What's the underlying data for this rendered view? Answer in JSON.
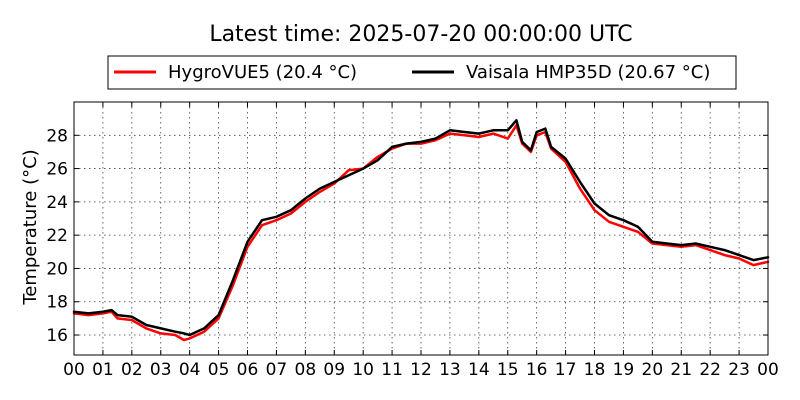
{
  "chart_data": {
    "type": "line",
    "title": "Latest time: 2025-07-20 00:00:00 UTC",
    "ylabel": "Temperature (°C)",
    "xlabel": "",
    "xlim": [
      0,
      24
    ],
    "ylim": [
      14.8,
      30.0
    ],
    "x_ticks": [
      0,
      1,
      2,
      3,
      4,
      5,
      6,
      7,
      8,
      9,
      10,
      11,
      12,
      13,
      14,
      15,
      16,
      17,
      18,
      19,
      20,
      21,
      22,
      23,
      24
    ],
    "x_tick_labels": [
      "00",
      "01",
      "02",
      "03",
      "04",
      "05",
      "06",
      "07",
      "08",
      "09",
      "10",
      "11",
      "12",
      "13",
      "14",
      "15",
      "16",
      "17",
      "18",
      "19",
      "20",
      "21",
      "22",
      "23",
      "00"
    ],
    "y_ticks": [
      16,
      18,
      20,
      22,
      24,
      26,
      28
    ],
    "y_tick_labels": [
      "16",
      "18",
      "20",
      "22",
      "24",
      "26",
      "28"
    ],
    "grid": true,
    "legend_position": "top-center",
    "series": [
      {
        "name": "HygroVUE5 (20.4 °C)",
        "color": "#ff0000",
        "x": [
          0,
          0.5,
          1,
          1.3,
          1.5,
          2,
          2.5,
          3,
          3.5,
          3.8,
          4,
          4.5,
          5,
          5.5,
          6,
          6.5,
          7,
          7.5,
          8,
          8.5,
          9,
          9.5,
          10,
          10.5,
          11,
          11.5,
          12,
          12.5,
          13,
          13.5,
          14,
          14.5,
          15,
          15.3,
          15.5,
          15.8,
          16,
          16.3,
          16.5,
          17,
          17.5,
          18,
          18.5,
          19,
          19.5,
          20,
          20.5,
          21,
          21.5,
          22,
          22.5,
          23,
          23.5,
          24
        ],
        "y": [
          17.3,
          17.2,
          17.3,
          17.4,
          17.0,
          16.9,
          16.4,
          16.1,
          16.0,
          15.7,
          15.8,
          16.2,
          17.0,
          19.0,
          21.3,
          22.6,
          22.9,
          23.3,
          24.0,
          24.6,
          25.1,
          25.9,
          26.0,
          26.7,
          27.2,
          27.5,
          27.5,
          27.7,
          28.1,
          28.0,
          27.9,
          28.1,
          27.8,
          28.6,
          27.5,
          27.0,
          28.0,
          28.2,
          27.2,
          26.4,
          24.8,
          23.5,
          22.8,
          22.5,
          22.2,
          21.5,
          21.4,
          21.3,
          21.4,
          21.1,
          20.8,
          20.6,
          20.2,
          20.4
        ]
      },
      {
        "name": "Vaisala HMP35D (20.67 °C)",
        "color": "#000000",
        "x": [
          0,
          0.5,
          1,
          1.3,
          1.5,
          2,
          2.5,
          3,
          3.5,
          3.8,
          4,
          4.5,
          5,
          5.5,
          6,
          6.5,
          7,
          7.5,
          8,
          8.5,
          9,
          9.5,
          10,
          10.5,
          11,
          11.5,
          12,
          12.5,
          13,
          13.5,
          14,
          14.5,
          15,
          15.3,
          15.5,
          15.8,
          16,
          16.3,
          16.5,
          17,
          17.5,
          18,
          18.5,
          19,
          19.5,
          20,
          20.5,
          21,
          21.5,
          22,
          22.5,
          23,
          23.5,
          24
        ],
        "y": [
          17.4,
          17.3,
          17.4,
          17.5,
          17.2,
          17.1,
          16.6,
          16.4,
          16.2,
          16.1,
          16.0,
          16.4,
          17.2,
          19.3,
          21.6,
          22.9,
          23.1,
          23.5,
          24.2,
          24.8,
          25.2,
          25.6,
          26.0,
          26.5,
          27.3,
          27.5,
          27.6,
          27.8,
          28.3,
          28.2,
          28.1,
          28.3,
          28.3,
          28.9,
          27.6,
          27.1,
          28.2,
          28.4,
          27.3,
          26.6,
          25.2,
          23.9,
          23.2,
          22.9,
          22.5,
          21.6,
          21.5,
          21.4,
          21.5,
          21.3,
          21.1,
          20.8,
          20.5,
          20.67
        ]
      }
    ]
  }
}
